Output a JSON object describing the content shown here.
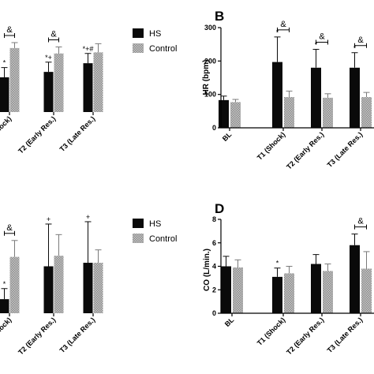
{
  "colors": {
    "hs": "#0a0a0a",
    "control": "#a6a6a6",
    "axis": "#000000"
  },
  "chart_data": [
    {
      "panel": "A",
      "type": "bar",
      "panel_label": "",
      "ylabel": "",
      "ylim": [
        0,
        80
      ],
      "yticks": [],
      "categories": [
        "(Shock)",
        "T2 (Early Res.)",
        "T3 (Late Res.)"
      ],
      "series": [
        {
          "name": "HS",
          "values": [
            32,
            37,
            45
          ],
          "errors": [
            9,
            9,
            9
          ]
        },
        {
          "name": "Control",
          "values": [
            59,
            54,
            55
          ],
          "errors": [
            5,
            6,
            8
          ]
        }
      ],
      "annotations": [
        {
          "category": 0,
          "series": 0,
          "text": "*"
        },
        {
          "category": 1,
          "series": 0,
          "text": "*+"
        },
        {
          "category": 2,
          "series": 0,
          "text": "*+#"
        }
      ],
      "brackets": [
        {
          "category": 0,
          "text": "&"
        },
        {
          "category": 1,
          "text": "&"
        }
      ],
      "legend": {
        "position": "right",
        "entries": [
          "HS",
          "Control"
        ]
      }
    },
    {
      "panel": "B",
      "type": "bar",
      "panel_label": "B",
      "ylabel": "HR (bpm)",
      "ylim": [
        0,
        300
      ],
      "yticks": [
        0,
        100,
        200,
        300
      ],
      "categories": [
        "BL",
        "T1 (Shock)",
        "T2 (Early Res.)",
        "T3 (Late Res.)"
      ],
      "series": [
        {
          "name": "HS",
          "values": [
            83,
            197,
            180,
            180
          ],
          "errors": [
            12,
            75,
            55,
            45
          ]
        },
        {
          "name": "Control",
          "values": [
            77,
            92,
            90,
            92
          ],
          "errors": [
            8,
            18,
            12,
            14
          ]
        }
      ],
      "annotations": [
        {
          "category": 1,
          "series": 0,
          "text": "*"
        },
        {
          "category": 2,
          "series": 0,
          "text": "*"
        },
        {
          "category": 3,
          "series": 0,
          "text": "*"
        }
      ],
      "brackets": [
        {
          "category": 1,
          "text": "&"
        },
        {
          "category": 2,
          "text": "&"
        },
        {
          "category": 3,
          "text": "&"
        }
      ]
    },
    {
      "panel": "C",
      "type": "bar",
      "panel_label": "",
      "ylabel": "",
      "ylim": [
        0,
        80
      ],
      "yticks": [],
      "categories": [
        "(Shock)",
        "T2 (Early Res.)",
        "T3 (Late Res.)"
      ],
      "series": [
        {
          "name": "HS",
          "values": [
            12,
            40,
            43
          ],
          "errors": [
            9,
            36,
            35
          ]
        },
        {
          "name": "Control",
          "values": [
            48,
            49,
            43
          ],
          "errors": [
            14,
            18,
            11
          ]
        }
      ],
      "annotations": [
        {
          "category": 0,
          "series": 0,
          "text": "*"
        },
        {
          "category": 1,
          "series": 0,
          "text": "+"
        },
        {
          "category": 2,
          "series": 0,
          "text": "+"
        }
      ],
      "brackets": [
        {
          "category": 0,
          "text": "&"
        }
      ],
      "legend": {
        "position": "right",
        "entries": [
          "HS",
          "Control"
        ]
      }
    },
    {
      "panel": "D",
      "type": "bar",
      "panel_label": "D",
      "ylabel": "CO (L/min.)",
      "ylim": [
        0,
        8
      ],
      "yticks": [
        0,
        2,
        4,
        6,
        8
      ],
      "categories": [
        "BL",
        "T1 (Shock)",
        "T2 (Early Res.)",
        "T3 (Late Res.)"
      ],
      "series": [
        {
          "name": "HS",
          "values": [
            4.0,
            3.1,
            4.2,
            5.8
          ],
          "errors": [
            0.85,
            0.75,
            0.8,
            0.95
          ]
        },
        {
          "name": "Control",
          "values": [
            3.9,
            3.4,
            3.6,
            3.8
          ],
          "errors": [
            0.65,
            0.6,
            0.6,
            1.45
          ]
        }
      ],
      "annotations": [
        {
          "category": 1,
          "series": 0,
          "text": "*"
        }
      ],
      "brackets": [
        {
          "category": 3,
          "text": "&"
        }
      ]
    }
  ]
}
